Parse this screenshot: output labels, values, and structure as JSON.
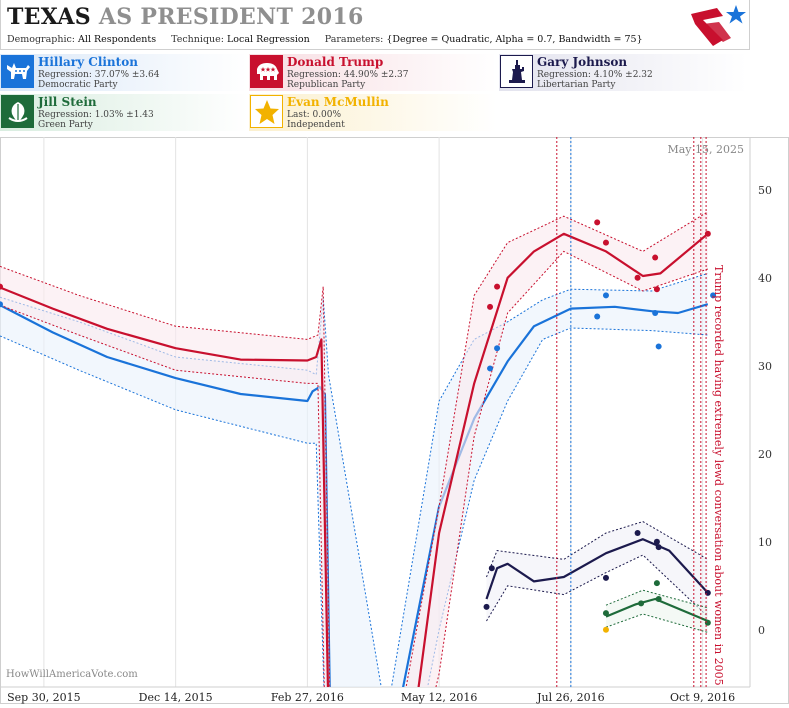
{
  "header": {
    "title_state": "TEXAS",
    "title_rest": "AS PRESIDENT 2016",
    "demographic_label": "Demographic:",
    "demographic_value": "All Respondents",
    "technique_label": "Technique:",
    "technique_value": "Local Regression",
    "parameters_label": "Parameters:",
    "parameters_value": "{Degree = Quadratic, Alpha = 0.7, Bandwidth = 75}"
  },
  "candidates": [
    {
      "name": "Hillary Clinton",
      "line2": "Regression: 37.07% ±3.64",
      "line3": "Democratic Party",
      "color": "#1a73d9",
      "icon": "donkey-icon"
    },
    {
      "name": "Donald Trump",
      "line2": "Regression: 44.90% ±2.37",
      "line3": "Republican Party",
      "color": "#c8102e",
      "icon": "elephant-icon"
    },
    {
      "name": "Gary Johnson",
      "line2": "Regression: 4.10% ±2.32",
      "line3": "Libertarian Party",
      "color": "#1c1a4d",
      "icon": "statue-of-liberty-icon"
    },
    {
      "name": "Jill Stein",
      "line2": "Regression: 1.03% ±1.43",
      "line3": "Green Party",
      "color": "#1e6b3a",
      "icon": "globe-leaf-icon"
    },
    {
      "name": "Evan McMullin",
      "line2": "Last: 0.00%",
      "line3": "Independent",
      "color": "#f2b200",
      "icon": "star-icon"
    }
  ],
  "chart_data": {
    "type": "line",
    "date_label": "May 15, 2025",
    "watermark": "HowWillAmericaVote.com",
    "annotation": "Trump recorded having extremely lewd conversation about women in 2005",
    "xlim": [
      "2015-09-05",
      "2016-11-05"
    ],
    "ylim": [
      -6.5,
      56
    ],
    "yticks": [
      0,
      10,
      20,
      30,
      40,
      50
    ],
    "xticks": [
      {
        "date": "2015-09-30",
        "label": "Sep 30, 2015"
      },
      {
        "date": "2015-12-14",
        "label": "Dec 14, 2015"
      },
      {
        "date": "2016-02-27",
        "label": "Feb 27, 2016"
      },
      {
        "date": "2016-05-12",
        "label": "May 12, 2016"
      },
      {
        "date": "2016-07-26",
        "label": "Jul 26, 2016"
      },
      {
        "date": "2016-10-09",
        "label": "Oct 9, 2016"
      }
    ],
    "event_lines": [
      {
        "date": "2016-07-18",
        "color": "#c8102e"
      },
      {
        "date": "2016-07-26",
        "color": "#1a73d9"
      },
      {
        "date": "2016-10-04",
        "color": "#c8102e"
      },
      {
        "date": "2016-10-08",
        "color": "#c8102e"
      },
      {
        "date": "2016-10-11",
        "color": "#c8102e"
      }
    ],
    "series": [
      {
        "name": "Hillary Clinton",
        "color": "#1a73d9",
        "fill": "#e9f1fb",
        "line": [
          [
            "2015-09-05",
            36.9
          ],
          [
            "2015-10-05",
            33.8
          ],
          [
            "2015-11-05",
            31.0
          ],
          [
            "2015-12-14",
            28.6
          ],
          [
            "2016-01-20",
            26.8
          ],
          [
            "2016-02-27",
            26.0
          ],
          [
            "2016-03-01",
            27.1
          ],
          [
            "2016-03-05",
            27.6
          ],
          [
            "2016-03-08",
            26.8
          ],
          [
            "2016-03-11",
            -10
          ],
          [
            "2016-04-18",
            -10
          ],
          [
            "2016-05-12",
            14.0
          ],
          [
            "2016-06-01",
            24.0
          ],
          [
            "2016-06-20",
            30.5
          ],
          [
            "2016-07-05",
            34.5
          ],
          [
            "2016-07-26",
            36.5
          ],
          [
            "2016-08-20",
            36.7
          ],
          [
            "2016-09-10",
            36.2
          ],
          [
            "2016-09-25",
            36.0
          ],
          [
            "2016-10-12",
            37.0
          ]
        ],
        "upper": [
          [
            "2015-09-05",
            37.8
          ],
          [
            "2015-10-20",
            35.0
          ],
          [
            "2015-12-14",
            31.0
          ],
          [
            "2016-02-27",
            29.5
          ],
          [
            "2016-03-03",
            29.0
          ],
          [
            "2016-03-07",
            37.8
          ],
          [
            "2016-03-10",
            29.0
          ],
          [
            "2016-04-12",
            -10
          ],
          [
            "2016-05-12",
            26.0
          ],
          [
            "2016-06-01",
            33.0
          ],
          [
            "2016-06-20",
            35.0
          ],
          [
            "2016-07-10",
            37.5
          ],
          [
            "2016-07-26",
            38.7
          ],
          [
            "2016-09-10",
            38.5
          ],
          [
            "2016-10-12",
            40.5
          ]
        ],
        "lower": [
          [
            "2015-09-05",
            33.4
          ],
          [
            "2015-10-20",
            29.5
          ],
          [
            "2015-12-14",
            25.0
          ],
          [
            "2016-02-27",
            21.2
          ],
          [
            "2016-03-03",
            21.2
          ],
          [
            "2016-03-08",
            -10
          ],
          [
            "2016-05-02",
            -10
          ],
          [
            "2016-05-12",
            0.0
          ],
          [
            "2016-06-01",
            17.0
          ],
          [
            "2016-06-20",
            26.0
          ],
          [
            "2016-07-10",
            33.0
          ],
          [
            "2016-07-26",
            34.3
          ],
          [
            "2016-09-10",
            34.0
          ],
          [
            "2016-10-12",
            33.5
          ]
        ],
        "points": [
          [
            "2015-09-05",
            37.0
          ],
          [
            "2016-06-10",
            29.7
          ],
          [
            "2016-06-14",
            32.0
          ],
          [
            "2016-08-10",
            35.6
          ],
          [
            "2016-08-15",
            38.0
          ],
          [
            "2016-09-12",
            36.0
          ],
          [
            "2016-09-14",
            32.2
          ],
          [
            "2016-10-15",
            38.0
          ]
        ]
      },
      {
        "name": "Donald Trump",
        "color": "#c8102e",
        "fill": "#faeaee",
        "line": [
          [
            "2015-09-05",
            38.9
          ],
          [
            "2015-10-05",
            36.5
          ],
          [
            "2015-11-05",
            34.2
          ],
          [
            "2015-12-14",
            32.0
          ],
          [
            "2016-01-20",
            30.7
          ],
          [
            "2016-02-27",
            30.6
          ],
          [
            "2016-03-03",
            31.0
          ],
          [
            "2016-03-06",
            33.0
          ],
          [
            "2016-03-10",
            -10
          ],
          [
            "2016-04-28",
            -10
          ],
          [
            "2016-05-12",
            11.0
          ],
          [
            "2016-06-01",
            28.0
          ],
          [
            "2016-06-20",
            40.0
          ],
          [
            "2016-07-05",
            43.0
          ],
          [
            "2016-07-22",
            45.0
          ],
          [
            "2016-08-15",
            43.0
          ],
          [
            "2016-09-05",
            40.2
          ],
          [
            "2016-09-15",
            40.5
          ],
          [
            "2016-10-12",
            45.0
          ]
        ],
        "upper": [
          [
            "2015-09-05",
            41.3
          ],
          [
            "2015-10-20",
            38.0
          ],
          [
            "2015-12-14",
            34.5
          ],
          [
            "2016-02-27",
            33.0
          ],
          [
            "2016-03-04",
            33.5
          ],
          [
            "2016-03-07",
            39.0
          ],
          [
            "2016-03-11",
            -10
          ],
          [
            "2016-04-20",
            -10
          ],
          [
            "2016-05-12",
            14.0
          ],
          [
            "2016-06-01",
            38.0
          ],
          [
            "2016-06-20",
            44.0
          ],
          [
            "2016-07-22",
            47.0
          ],
          [
            "2016-09-05",
            43.0
          ],
          [
            "2016-10-12",
            47.5
          ]
        ],
        "lower": [
          [
            "2015-09-05",
            36.9
          ],
          [
            "2015-10-20",
            33.5
          ],
          [
            "2015-12-14",
            29.5
          ],
          [
            "2016-02-27",
            28.0
          ],
          [
            "2016-03-04",
            28.0
          ],
          [
            "2016-03-08",
            -10
          ],
          [
            "2016-05-06",
            -10
          ],
          [
            "2016-05-12",
            -5.0
          ],
          [
            "2016-06-01",
            22.0
          ],
          [
            "2016-06-20",
            36.0
          ],
          [
            "2016-07-22",
            43.0
          ],
          [
            "2016-09-05",
            38.5
          ],
          [
            "2016-10-12",
            41.0
          ]
        ],
        "points": [
          [
            "2015-09-05",
            39.0
          ],
          [
            "2016-06-10",
            36.7
          ],
          [
            "2016-06-14",
            39.0
          ],
          [
            "2016-08-10",
            46.3
          ],
          [
            "2016-08-15",
            44.0
          ],
          [
            "2016-09-02",
            40.0
          ],
          [
            "2016-09-12",
            42.3
          ],
          [
            "2016-09-13",
            38.7
          ],
          [
            "2016-10-12",
            45.0
          ]
        ]
      },
      {
        "name": "Gary Johnson",
        "color": "#1c1a4d",
        "fill": "#f0f0f7",
        "line": [
          [
            "2016-06-08",
            3.5
          ],
          [
            "2016-06-14",
            7.0
          ],
          [
            "2016-06-20",
            7.5
          ],
          [
            "2016-07-05",
            5.5
          ],
          [
            "2016-07-22",
            6.0
          ],
          [
            "2016-08-15",
            8.7
          ],
          [
            "2016-09-05",
            10.3
          ],
          [
            "2016-09-20",
            9.0
          ],
          [
            "2016-10-12",
            4.2
          ]
        ],
        "upper": [
          [
            "2016-06-08",
            6.0
          ],
          [
            "2016-06-14",
            9.0
          ],
          [
            "2016-07-22",
            8.0
          ],
          [
            "2016-08-15",
            11.0
          ],
          [
            "2016-09-05",
            12.3
          ],
          [
            "2016-10-12",
            8.0
          ]
        ],
        "lower": [
          [
            "2016-06-08",
            1.0
          ],
          [
            "2016-06-20",
            5.0
          ],
          [
            "2016-07-22",
            4.0
          ],
          [
            "2016-08-15",
            6.5
          ],
          [
            "2016-09-05",
            8.5
          ],
          [
            "2016-10-12",
            1.5
          ]
        ],
        "points": [
          [
            "2016-06-08",
            2.6
          ],
          [
            "2016-06-11",
            7.0
          ],
          [
            "2016-08-15",
            5.9
          ],
          [
            "2016-09-02",
            11.0
          ],
          [
            "2016-09-13",
            10.0
          ],
          [
            "2016-09-14",
            9.4
          ],
          [
            "2016-10-12",
            4.2
          ]
        ]
      },
      {
        "name": "Jill Stein",
        "color": "#1e6b3a",
        "fill": "#ecf5ef",
        "line": [
          [
            "2016-08-15",
            1.5
          ],
          [
            "2016-09-01",
            2.9
          ],
          [
            "2016-09-12",
            3.5
          ],
          [
            "2016-10-12",
            1.0
          ]
        ],
        "upper": [
          [
            "2016-08-15",
            2.8
          ],
          [
            "2016-09-05",
            4.5
          ],
          [
            "2016-10-12",
            2.5
          ]
        ],
        "lower": [
          [
            "2016-08-15",
            0.3
          ],
          [
            "2016-09-05",
            1.8
          ],
          [
            "2016-10-12",
            -0.3
          ]
        ],
        "points": [
          [
            "2016-08-15",
            1.9
          ],
          [
            "2016-09-04",
            3.0
          ],
          [
            "2016-09-13",
            5.3
          ],
          [
            "2016-09-14",
            3.5
          ],
          [
            "2016-10-12",
            0.8
          ]
        ]
      },
      {
        "name": "Evan McMullin",
        "color": "#f2b200",
        "line": [],
        "upper": [],
        "lower": [],
        "points": [
          [
            "2016-08-15",
            0.0
          ]
        ]
      }
    ]
  }
}
